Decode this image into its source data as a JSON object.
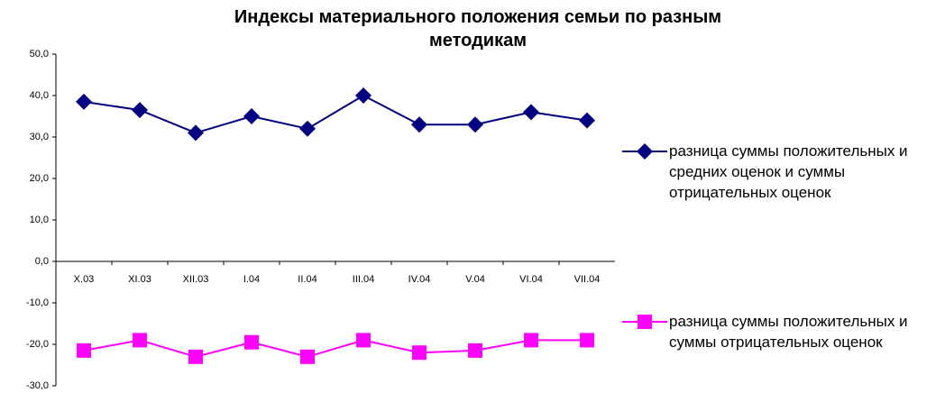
{
  "chart_data": {
    "type": "line",
    "title": "Индексы материального положения семьи по разным методикам",
    "categories": [
      "X.03",
      "XI.03",
      "XII.03",
      "I.04",
      "II.04",
      "III.04",
      "IV.04",
      "V.04",
      "VI.04",
      "VII.04"
    ],
    "series": [
      {
        "name": "разница суммы положительных и средних оценок и суммы отрицательных оценок",
        "color": "#000080",
        "marker": "diamond",
        "values": [
          38.5,
          36.5,
          31,
          35,
          32,
          40,
          33,
          33,
          36,
          34
        ]
      },
      {
        "name": "разница суммы положительных и суммы отрицательных оценок",
        "color": "#ff00ff",
        "marker": "square",
        "values": [
          -21.5,
          -19,
          -23,
          -19.5,
          -23,
          -19,
          -22,
          -21.5,
          -19,
          -19
        ]
      }
    ],
    "ylim": [
      -30,
      50
    ],
    "yticks": [
      {
        "value": -30,
        "label": "-30,0"
      },
      {
        "value": -20,
        "label": "-20,0"
      },
      {
        "value": -10,
        "label": "-10,0"
      },
      {
        "value": 0,
        "label": "0,0"
      },
      {
        "value": 10,
        "label": "10,0"
      },
      {
        "value": 20,
        "label": "20,0"
      },
      {
        "value": 30,
        "label": "30,0"
      },
      {
        "value": 40,
        "label": "40,0"
      },
      {
        "value": 50,
        "label": "50,0"
      }
    ],
    "legend": "right"
  }
}
